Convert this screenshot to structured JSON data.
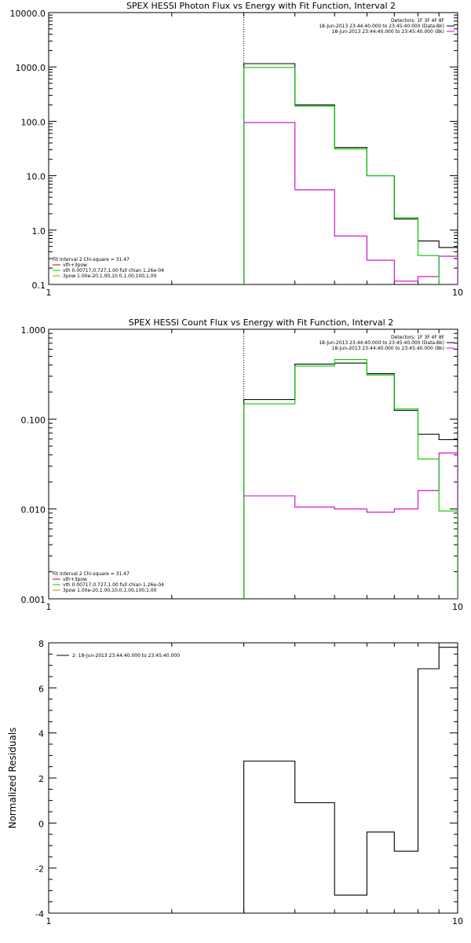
{
  "chart_data": [
    {
      "type": "line",
      "title": "SPEX HESSI Photon Flux vs Energy with Fit Function, Interval 2",
      "xlabel": "",
      "ylabel": "",
      "xscale": "log",
      "yscale": "log",
      "xlim": [
        1,
        10
      ],
      "ylim": [
        0.1,
        10000.0
      ],
      "x_ticks": [
        "1",
        "10"
      ],
      "y_ticks": [
        "0.1",
        "1.0",
        "10.0",
        "100.0",
        "1000.0",
        "10000.0"
      ],
      "vline_x": 3.0,
      "legend_top": [
        "Detectors: 1F 3F 4F 8F",
        "18-Jun-2013 23:44:40.000 to 23:45:40.000 (Data-Bk)",
        "18-Jun-2013 23:44:40.000 to 23:45:40.000 (Bk)"
      ],
      "legend_bottom": [
        "Fit Interval 2   Chi-square = 31.47",
        "vth+3pow",
        "vth 0.00717,0.727,1.00  full chian 1.26e-04",
        "3pow 1.00e-20,1.00,10.0,1.00,100,1.00"
      ],
      "series": [
        {
          "name": "Data-Bk",
          "color": "#000000",
          "edges": [
            3.0,
            4.0,
            5.0,
            6.0,
            7.0,
            8.0,
            9.0,
            10.0
          ],
          "values": [
            1150,
            200,
            33,
            10,
            1.6,
            0.63,
            0.48
          ]
        },
        {
          "name": "Bk",
          "color": "#cc00cc",
          "edges": [
            3.0,
            4.0,
            5.0,
            6.0,
            7.0,
            8.0,
            9.0,
            10.0
          ],
          "values": [
            95,
            5.5,
            0.78,
            0.28,
            0.115,
            0.14,
            0.33
          ]
        },
        {
          "name": "vth+3pow",
          "color": "#00cc00",
          "edges": [
            3.0,
            4.0,
            5.0,
            6.0,
            7.0,
            8.0,
            9.0,
            10.0
          ],
          "values": [
            980,
            190,
            31,
            10,
            1.7,
            0.34,
            0.09
          ]
        }
      ]
    },
    {
      "type": "line",
      "title": "SPEX HESSI Count Flux vs Energy with Fit Function, Interval 2",
      "xlabel": "",
      "ylabel": "",
      "xscale": "log",
      "yscale": "log",
      "xlim": [
        1,
        10
      ],
      "ylim": [
        0.001,
        1.0
      ],
      "x_ticks": [
        "1",
        "10"
      ],
      "y_ticks": [
        "0.001",
        "0.010",
        "0.100",
        "1.000"
      ],
      "vline_x": 3.0,
      "legend_top": [
        "Detectors: 1F 3F 4F 8F",
        "18-Jun-2013 23:44:40.000 to 23:45:40.000 (Data-Bk)",
        "18-Jun-2013 23:44:40.000 to 23:45:40.000 (Bk)"
      ],
      "legend_bottom": [
        "Fit Interval 2   Chi-square = 31.47",
        "vth+3pow",
        "vth 0.00717,0.727,1.00  full chian 1.26e-04",
        "3pow 1.00e-20,1.00,10.0,1.00,100,1.00"
      ],
      "series": [
        {
          "name": "Data-Bk",
          "color": "#000000",
          "edges": [
            3.0,
            4.0,
            5.0,
            6.0,
            7.0,
            8.0,
            9.0,
            10.0
          ],
          "values": [
            0.165,
            0.41,
            0.42,
            0.32,
            0.125,
            0.068,
            0.059
          ]
        },
        {
          "name": "Bk",
          "color": "#cc00cc",
          "edges": [
            3.0,
            4.0,
            5.0,
            6.0,
            7.0,
            8.0,
            9.0,
            10.0
          ],
          "values": [
            0.014,
            0.0105,
            0.01,
            0.0092,
            0.01,
            0.016,
            0.042
          ]
        },
        {
          "name": "vth+3pow",
          "color": "#00cc00",
          "edges": [
            3.0,
            4.0,
            5.0,
            6.0,
            7.0,
            8.0,
            9.0,
            10.0
          ],
          "values": [
            0.148,
            0.39,
            0.46,
            0.31,
            0.13,
            0.036,
            0.0095
          ]
        }
      ]
    },
    {
      "type": "line",
      "title": "",
      "xlabel": "",
      "ylabel": "Normalized Residuals",
      "xscale": "log",
      "yscale": "linear",
      "xlim": [
        1,
        10
      ],
      "ylim": [
        -4,
        8
      ],
      "x_ticks": [
        "1",
        "10"
      ],
      "y_ticks": [
        "-4",
        "-2",
        "0",
        "2",
        "4",
        "6",
        "8"
      ],
      "legend_top": [
        "2: 18-Jun-2013 23:44:40.000 to 23:45:40.000"
      ],
      "series": [
        {
          "name": "2: 18-Jun-2013 23:44:40.000 to 23:45:40.000",
          "color": "#000000",
          "edges": [
            3.0,
            4.0,
            5.0,
            6.0,
            7.0,
            8.0,
            9.0,
            10.0
          ],
          "values": [
            2.75,
            0.9,
            -3.2,
            -0.4,
            -1.25,
            6.85,
            7.8
          ]
        }
      ]
    }
  ]
}
